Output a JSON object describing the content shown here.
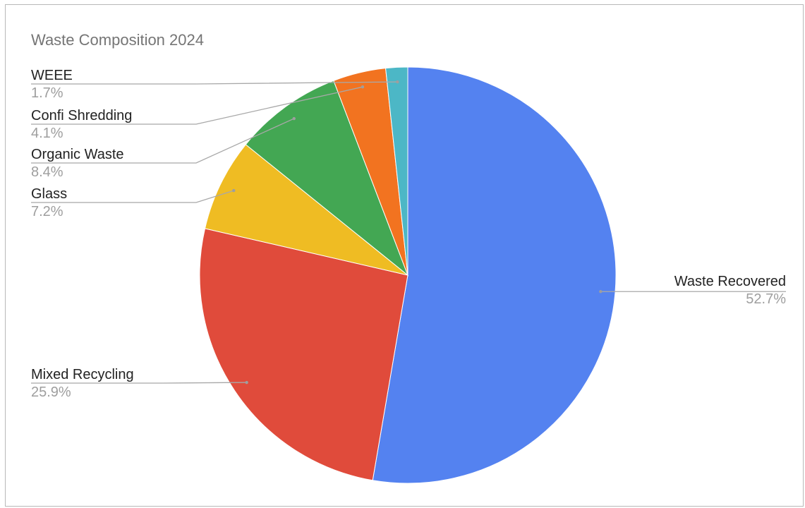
{
  "chart_data": {
    "type": "pie",
    "title": "Waste Composition 2024",
    "slices": [
      {
        "label": "Waste Recovered",
        "value": 52.7,
        "pct_label": "52.7%",
        "color": "#5482f0"
      },
      {
        "label": "Mixed Recycling",
        "value": 25.9,
        "pct_label": "25.9%",
        "color": "#e04b3b"
      },
      {
        "label": "Glass",
        "value": 7.2,
        "pct_label": "7.2%",
        "color": "#efbc23"
      },
      {
        "label": "Organic Waste",
        "value": 8.4,
        "pct_label": "8.4%",
        "color": "#43a753"
      },
      {
        "label": "Confi Shredding",
        "value": 4.1,
        "pct_label": "4.1%",
        "color": "#f27320"
      },
      {
        "label": "WEEE",
        "value": 1.7,
        "pct_label": "1.7%",
        "color": "#4cb7c6"
      }
    ],
    "start_angle": "12 o'clock",
    "direction": "clockwise",
    "legend": "none",
    "labels": "outside with leader lines"
  }
}
